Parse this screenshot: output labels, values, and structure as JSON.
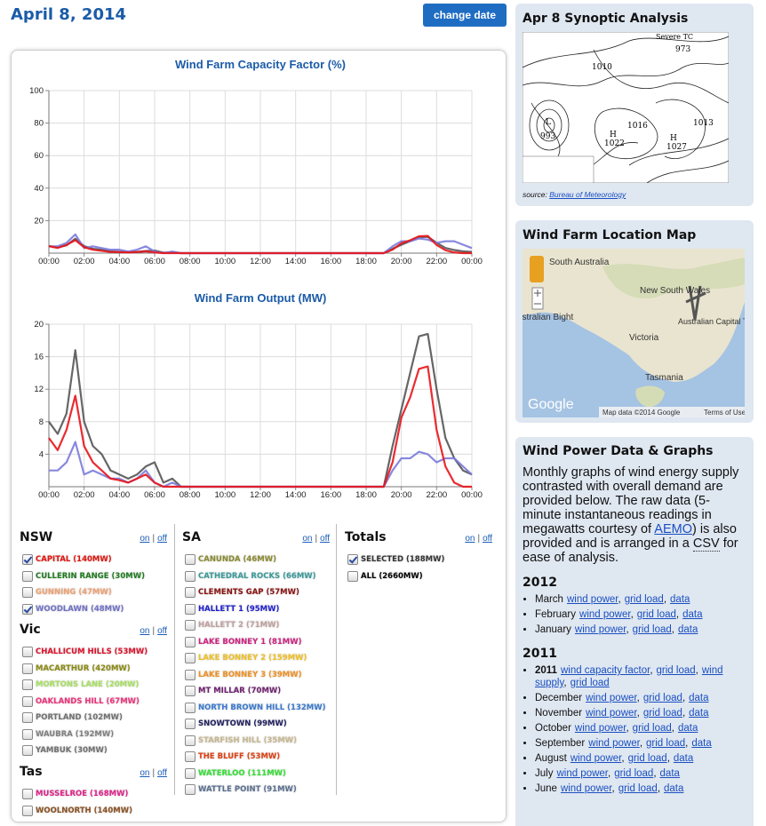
{
  "header": {
    "date": "April 8, 2014",
    "button": "change date"
  },
  "chart_data": [
    {
      "type": "line",
      "title": "Wind Farm Capacity Factor (%)",
      "x": [
        0,
        0.5,
        1,
        1.5,
        2,
        2.5,
        3,
        3.5,
        4,
        4.5,
        5,
        5.5,
        6,
        6.5,
        7,
        7.5,
        8,
        8.5,
        9,
        9.5,
        10,
        10.5,
        11,
        11.5,
        12,
        12.5,
        13,
        13.5,
        14,
        14.5,
        15,
        15.5,
        16,
        16.5,
        17,
        17.5,
        18,
        18.5,
        19,
        19.5,
        20,
        20.5,
        21,
        21.5,
        22,
        22.5,
        23,
        23.5,
        24
      ],
      "xlim": [
        0,
        24
      ],
      "xticks": [
        {
          "value": 0,
          "label": "00:00"
        },
        {
          "value": 2,
          "label": "02:00"
        },
        {
          "value": 4,
          "label": "04:00"
        },
        {
          "value": 6,
          "label": "06:00"
        },
        {
          "value": 8,
          "label": "08:00"
        },
        {
          "value": 10,
          "label": "10:00"
        },
        {
          "value": 12,
          "label": "12:00"
        },
        {
          "value": 14,
          "label": "14:00"
        },
        {
          "value": 16,
          "label": "16:00"
        },
        {
          "value": 18,
          "label": "18:00"
        },
        {
          "value": 20,
          "label": "20:00"
        },
        {
          "value": 22,
          "label": "22:00"
        },
        {
          "value": 24,
          "label": "00:00"
        }
      ],
      "ylim": [
        0,
        100
      ],
      "yticks": [
        20,
        40,
        60,
        80,
        100
      ],
      "grid": true,
      "series": [
        {
          "color": "#555555",
          "values": [
            4.3,
            3.5,
            4.8,
            8.9,
            4.3,
            2.7,
            2.1,
            1.1,
            0.8,
            0.5,
            0.8,
            1.3,
            1.6,
            0.3,
            0.5,
            0,
            0,
            0,
            0,
            0,
            0,
            0,
            0,
            0,
            0,
            0,
            0,
            0,
            0,
            0,
            0,
            0,
            0,
            0,
            0,
            0,
            0,
            0,
            0,
            2.7,
            5.1,
            7.4,
            9.8,
            10,
            6.4,
            3.2,
            1.9,
            1.1,
            0.8
          ]
        },
        {
          "color": "#7b7bdc",
          "values": [
            4.2,
            4.2,
            6.3,
            11.5,
            3.1,
            4.2,
            3.1,
            2.1,
            2.1,
            1,
            2.1,
            4.2,
            1,
            0,
            1,
            0,
            0,
            0,
            0,
            0,
            0,
            0,
            0,
            0,
            0,
            0,
            0,
            0,
            0,
            0,
            0,
            0,
            0,
            0,
            0,
            0,
            0,
            0,
            0,
            4.2,
            7.3,
            7.3,
            9,
            8.3,
            6.3,
            7.3,
            7.3,
            5.2,
            3.1
          ]
        },
        {
          "color": "#e8141b",
          "values": [
            4.3,
            3.2,
            5,
            8,
            3.6,
            2.1,
            1.4,
            0.7,
            0.6,
            0.4,
            0.7,
            1.1,
            0.4,
            0,
            0,
            0,
            0,
            0,
            0,
            0,
            0,
            0,
            0,
            0,
            0,
            0,
            0,
            0,
            0,
            0,
            0,
            0,
            0,
            0,
            0,
            0,
            0,
            0,
            0,
            2.1,
            6.1,
            7.9,
            10.4,
            10.6,
            5,
            1.8,
            0.4,
            0,
            0
          ]
        }
      ]
    },
    {
      "type": "line",
      "title": "Wind Farm Output (MW)",
      "x": [
        0,
        0.5,
        1,
        1.5,
        2,
        2.5,
        3,
        3.5,
        4,
        4.5,
        5,
        5.5,
        6,
        6.5,
        7,
        7.5,
        8,
        8.5,
        9,
        9.5,
        10,
        10.5,
        11,
        11.5,
        12,
        12.5,
        13,
        13.5,
        14,
        14.5,
        15,
        15.5,
        16,
        16.5,
        17,
        17.5,
        18,
        18.5,
        19,
        19.5,
        20,
        20.5,
        21,
        21.5,
        22,
        22.5,
        23,
        23.5,
        24
      ],
      "xlim": [
        0,
        24
      ],
      "xticks": [
        {
          "value": 0,
          "label": "00:00"
        },
        {
          "value": 2,
          "label": "02:00"
        },
        {
          "value": 4,
          "label": "04:00"
        },
        {
          "value": 6,
          "label": "06:00"
        },
        {
          "value": 8,
          "label": "08:00"
        },
        {
          "value": 10,
          "label": "10:00"
        },
        {
          "value": 12,
          "label": "12:00"
        },
        {
          "value": 14,
          "label": "14:00"
        },
        {
          "value": 16,
          "label": "16:00"
        },
        {
          "value": 18,
          "label": "18:00"
        },
        {
          "value": 20,
          "label": "20:00"
        },
        {
          "value": 22,
          "label": "22:00"
        },
        {
          "value": 24,
          "label": "00:00"
        }
      ],
      "ylim": [
        0,
        20
      ],
      "yticks": [
        4,
        8,
        12,
        16,
        20
      ],
      "grid": true,
      "series": [
        {
          "color": "#555555",
          "values": [
            8,
            6.5,
            9,
            16.8,
            8,
            5,
            4,
            2,
            1.5,
            1,
            1.5,
            2.5,
            3,
            0.5,
            1,
            0,
            0,
            0,
            0,
            0,
            0,
            0,
            0,
            0,
            0,
            0,
            0,
            0,
            0,
            0,
            0,
            0,
            0,
            0,
            0,
            0,
            0,
            0,
            0,
            5,
            9.5,
            14,
            18.5,
            18.8,
            12,
            6,
            3.5,
            2,
            1.5
          ]
        },
        {
          "color": "#7b7bdc",
          "values": [
            2,
            2,
            3,
            5.5,
            1.5,
            2,
            1.5,
            1,
            1,
            0.5,
            1,
            2,
            0.5,
            0,
            0.5,
            0,
            0,
            0,
            0,
            0,
            0,
            0,
            0,
            0,
            0,
            0,
            0,
            0,
            0,
            0,
            0,
            0,
            0,
            0,
            0,
            0,
            0,
            0,
            0,
            2,
            3.5,
            3.5,
            4.3,
            4,
            3,
            3.5,
            3.5,
            2.5,
            1.5
          ]
        },
        {
          "color": "#e8141b",
          "values": [
            6,
            4.5,
            7,
            11.2,
            5,
            3,
            2,
            1,
            0.8,
            0.5,
            1,
            1.5,
            0.5,
            0,
            0,
            0,
            0,
            0,
            0,
            0,
            0,
            0,
            0,
            0,
            0,
            0,
            0,
            0,
            0,
            0,
            0,
            0,
            0,
            0,
            0,
            0,
            0,
            0,
            0,
            3,
            8.5,
            11,
            14.5,
            14.8,
            7,
            2.5,
            0.5,
            0,
            0
          ]
        }
      ]
    }
  ],
  "regions": [
    {
      "name": "NSW",
      "on": "on",
      "sep": "|",
      "off": "off",
      "farms": [
        {
          "label": "CAPITAL (140MW)",
          "color": "#e3120b",
          "checked": true
        },
        {
          "label": "CULLERIN RANGE (30MW)",
          "color": "#1e7b1e",
          "checked": false
        },
        {
          "label": "GUNNING (47MW)",
          "color": "#f0a070",
          "checked": false
        },
        {
          "label": "WOODLAWN (48MW)",
          "color": "#7070c8",
          "checked": true
        }
      ]
    },
    {
      "name": "Vic",
      "on": "on",
      "sep": "|",
      "off": "off",
      "farms": [
        {
          "label": "CHALLICUM HILLS (53MW)",
          "color": "#e0102a",
          "checked": false
        },
        {
          "label": "MACARTHUR (420MW)",
          "color": "#8a8a10",
          "checked": false
        },
        {
          "label": "MORTONS LANE (20MW)",
          "color": "#a8e060",
          "checked": false
        },
        {
          "label": "OAKLANDS HILL (67MW)",
          "color": "#f0307a",
          "checked": false
        },
        {
          "label": "PORTLAND (102MW)",
          "color": "#707070",
          "checked": false
        },
        {
          "label": "WAUBRA (192MW)",
          "color": "#808080",
          "checked": false
        },
        {
          "label": "YAMBUK (30MW)",
          "color": "#707070",
          "checked": false
        }
      ]
    },
    {
      "name": "Tas",
      "on": "on",
      "sep": "|",
      "off": "off",
      "farms": [
        {
          "label": "MUSSELROE (168MW)",
          "color": "#e0208a",
          "checked": false
        },
        {
          "label": "WOOLNORTH (140MW)",
          "color": "#8a5020",
          "checked": false
        }
      ]
    },
    {
      "name": "SA",
      "on": "on",
      "sep": "|",
      "off": "off",
      "farms": [
        {
          "label": "CANUNDA (46MW)",
          "color": "#8a8a30",
          "checked": false
        },
        {
          "label": "CATHEDRAL ROCKS (66MW)",
          "color": "#3a9a9a",
          "checked": false
        },
        {
          "label": "CLEMENTS GAP (57MW)",
          "color": "#8a1010",
          "checked": false
        },
        {
          "label": "HALLETT 1 (95MW)",
          "color": "#2020d0",
          "checked": false
        },
        {
          "label": "HALLETT 2 (71MW)",
          "color": "#c0a0a0",
          "checked": false
        },
        {
          "label": "LAKE BONNEY 1 (81MW)",
          "color": "#d02080",
          "checked": false
        },
        {
          "label": "LAKE BONNEY 2 (159MW)",
          "color": "#f0c020",
          "checked": false
        },
        {
          "label": "LAKE BONNEY 3 (39MW)",
          "color": "#f09020",
          "checked": false
        },
        {
          "label": "MT MILLAR (70MW)",
          "color": "#702070",
          "checked": false
        },
        {
          "label": "NORTH BROWN HILL (132MW)",
          "color": "#3a7ad0",
          "checked": false
        },
        {
          "label": "SNOWTOWN (99MW)",
          "color": "#202060",
          "checked": false
        },
        {
          "label": "STARFISH HILL (35MW)",
          "color": "#c8b890",
          "checked": false
        },
        {
          "label": "THE BLUFF (53MW)",
          "color": "#e04010",
          "checked": false
        },
        {
          "label": "WATERLOO (111MW)",
          "color": "#30e030",
          "checked": false
        },
        {
          "label": "WATTLE POINT (91MW)",
          "color": "#5a7090",
          "checked": false
        }
      ]
    },
    {
      "name": "Totals",
      "on": "on",
      "sep": "|",
      "off": "off",
      "farms": [
        {
          "label": "SELECTED (188MW)",
          "color": "#333333",
          "checked": true
        },
        {
          "label": "ALL (2660MW)",
          "color": "#000000",
          "checked": false
        }
      ]
    }
  ],
  "synoptic": {
    "title": "Apr 8 Synoptic Analysis",
    "map_labels": [
      "Severe TC",
      "973",
      "1010",
      "1016",
      "1022",
      "1027",
      "1013",
      "993",
      "H",
      "H",
      "L"
    ],
    "source_label": "source:",
    "source_link": "Bureau of Meteorology"
  },
  "location_map": {
    "title": "Wind Farm Location Map",
    "labels": [
      "South Australia",
      "New South Wales",
      "Great Australian Bight",
      "Victoria",
      "Australian Capital Territory",
      "Tasmania"
    ],
    "logo": "Google",
    "attribution": "Map data ©2014 Google",
    "terms": "Terms of Use"
  },
  "data_section": {
    "title": "Wind Power Data & Graphs",
    "intro": [
      "Monthly graphs of wind energy supply contrasted with overall demand are provided below. The raw data (5-minute instantaneous readings in megawatts courtesy of ",
      "AEMO",
      ") is also provided and is arranged in a ",
      "CSV",
      " for ease of analysis."
    ],
    "separator": ",",
    "years": [
      {
        "year": "2012",
        "items": [
          {
            "month": "March",
            "links": [
              "wind power",
              "grid load",
              "data"
            ]
          },
          {
            "month": "February",
            "links": [
              "wind power",
              "grid load",
              "data"
            ]
          },
          {
            "month": "January",
            "links": [
              "wind power",
              "grid load",
              "data"
            ]
          }
        ]
      },
      {
        "year": "2011",
        "items": [
          {
            "month": "2011",
            "bold": true,
            "links": [
              "wind capacity factor",
              "grid load",
              "wind supply",
              "grid load"
            ]
          },
          {
            "month": "December",
            "links": [
              "wind power",
              "grid load",
              "data"
            ]
          },
          {
            "month": "November",
            "links": [
              "wind power",
              "grid load",
              "data"
            ]
          },
          {
            "month": "October",
            "links": [
              "wind power",
              "grid load",
              "data"
            ]
          },
          {
            "month": "September",
            "links": [
              "wind power",
              "grid load",
              "data"
            ]
          },
          {
            "month": "August",
            "links": [
              "wind power",
              "grid load",
              "data"
            ]
          },
          {
            "month": "July",
            "links": [
              "wind power",
              "grid load",
              "data"
            ]
          },
          {
            "month": "June",
            "links": [
              "wind power",
              "grid load",
              "data"
            ]
          }
        ]
      }
    ]
  }
}
